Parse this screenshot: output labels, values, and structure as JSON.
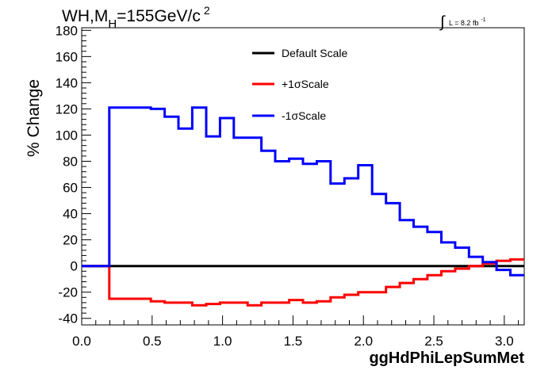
{
  "chart_data": {
    "type": "line",
    "title": {
      "main": "WH,M",
      "sub": "H",
      "rest": "=155GeV/c",
      "sup": "2"
    },
    "lumi": {
      "symbol": "∫",
      "text": "L = 8.2 fb",
      "sup": "-1"
    },
    "xlabel": "ggHdPhiLepSumMet",
    "ylabel": "% Change",
    "xlim": [
      0,
      3.1416
    ],
    "ylim": [
      -45,
      182
    ],
    "xticks": [
      "0.0",
      "0.5",
      "1.0",
      "1.5",
      "2.0",
      "2.5",
      "3.0"
    ],
    "yticks": [
      "-40",
      "-20",
      "0",
      "20",
      "40",
      "60",
      "80",
      "100",
      "120",
      "140",
      "160",
      "180"
    ],
    "grid": false,
    "legend_position": "top-center",
    "x_edges": [
      0.0,
      0.098,
      0.196,
      0.295,
      0.393,
      0.491,
      0.589,
      0.687,
      0.785,
      0.884,
      0.982,
      1.08,
      1.178,
      1.276,
      1.374,
      1.473,
      1.571,
      1.669,
      1.767,
      1.865,
      1.963,
      2.062,
      2.16,
      2.258,
      2.356,
      2.454,
      2.553,
      2.651,
      2.749,
      2.847,
      2.945,
      3.043,
      3.1416
    ],
    "series": [
      {
        "name": "Default Scale",
        "color": "#000000",
        "values": [
          0,
          0,
          0,
          0,
          0,
          0,
          0,
          0,
          0,
          0,
          0,
          0,
          0,
          0,
          0,
          0,
          0,
          0,
          0,
          0,
          0,
          0,
          0,
          0,
          0,
          0,
          0,
          0,
          0,
          0,
          0,
          0
        ]
      },
      {
        "name": "+1σScale",
        "color": "#ff0000",
        "values": [
          0,
          0,
          -25,
          -25,
          -25,
          -27,
          -28,
          -28,
          -30,
          -29,
          -28,
          -28,
          -30,
          -28,
          -28,
          -26,
          -28,
          -27,
          -24,
          -22,
          -20,
          -20,
          -16,
          -13,
          -10,
          -7,
          -4,
          -2,
          0,
          2,
          4,
          5
        ]
      },
      {
        "name": "-1σScale",
        "color": "#0000ff",
        "values": [
          0,
          0,
          121,
          121,
          121,
          120,
          114,
          105,
          121,
          99,
          113,
          98,
          98,
          88,
          80,
          82,
          78,
          80,
          63,
          67,
          77,
          55,
          48,
          35,
          30,
          26,
          18,
          14,
          7,
          3,
          -3,
          -7
        ]
      }
    ]
  }
}
